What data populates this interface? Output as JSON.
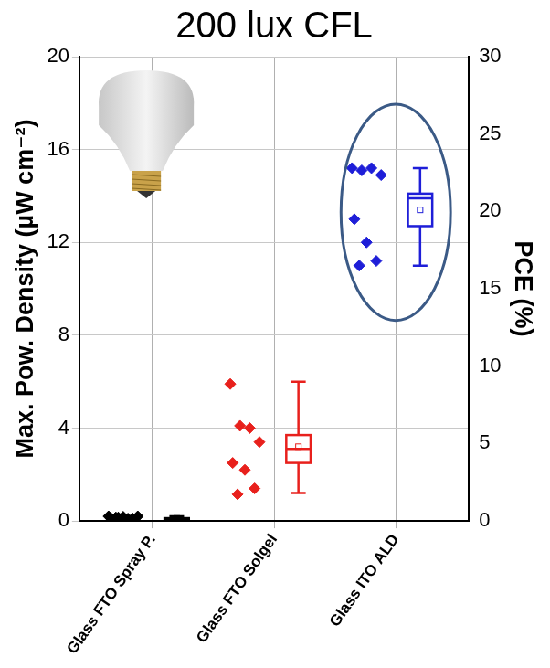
{
  "chart_data": {
    "type": "box",
    "title": "200 lux CFL",
    "y_label": "Max. Pow. Density (µW cm⁻²)",
    "y2_label": "PCE (%)",
    "categories": [
      "Glass FTO Spray P.",
      "Glass FTO Solgel",
      "Glass ITO ALD"
    ],
    "colors": [
      "#000000",
      "#e8201c",
      "#1e1ed8"
    ],
    "marker": "diamond",
    "points": [
      [
        0.2,
        0.15,
        0.1,
        0.2,
        0.12,
        0.18,
        0.1,
        0.15
      ],
      [
        5.9,
        4.1,
        4.0,
        3.4,
        2.5,
        2.2,
        1.4,
        1.15
      ],
      [
        15.2,
        15.1,
        15.2,
        14.9,
        13.0,
        12.0,
        11.2,
        11.0
      ]
    ],
    "box": [
      {
        "min": 0.05,
        "q1": 0.08,
        "median": 0.1,
        "q3": 0.12,
        "max": 0.2,
        "mean": 0.11
      },
      {
        "min": 1.2,
        "q1": 2.5,
        "median": 3.1,
        "q3": 3.7,
        "max": 6.0,
        "mean": 3.2
      },
      {
        "min": 11.0,
        "q1": 12.7,
        "median": 13.9,
        "q3": 14.1,
        "max": 15.2,
        "mean": 13.4
      }
    ],
    "ylim": [
      0,
      20
    ],
    "yticks": [
      0,
      4,
      8,
      12,
      16,
      20
    ],
    "y2lim": [
      0,
      30
    ],
    "y2ticks": [
      0,
      5,
      10,
      15,
      20,
      25,
      30
    ],
    "grid": true
  }
}
